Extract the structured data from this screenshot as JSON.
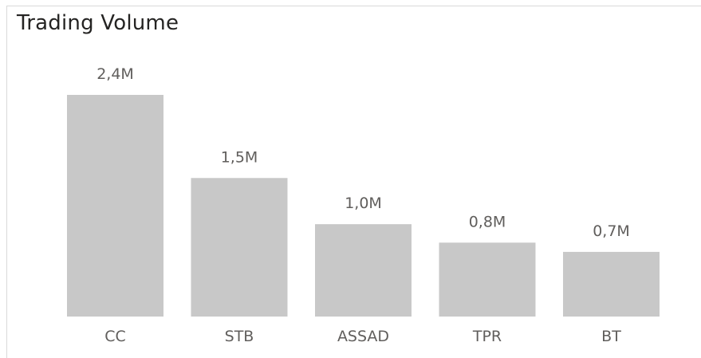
{
  "chart_data": {
    "type": "bar",
    "title": "Trading Volume",
    "categories": [
      "CC",
      "STB",
      "ASSAD",
      "TPR",
      "BT"
    ],
    "values": [
      2.4,
      1.5,
      1.0,
      0.8,
      0.7
    ],
    "data_labels": [
      "2,4M",
      "1,5M",
      "1,0M",
      "0,8M",
      "0,7M"
    ],
    "unit": "M",
    "xlabel": "",
    "ylabel": "",
    "ylim": [
      0,
      2.4
    ],
    "grid": false,
    "legend": "none",
    "bar_color": "#c8c8c8",
    "label_color": "#605e5c",
    "title_color": "#252423"
  }
}
